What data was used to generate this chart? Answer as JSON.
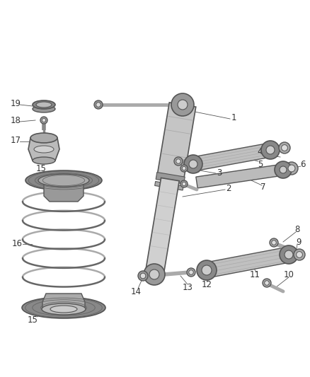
{
  "background_color": "#ffffff",
  "fig_width": 4.38,
  "fig_height": 5.33,
  "dpi": 100,
  "line_color": "#555555",
  "text_color": "#333333",
  "gray_dark": "#888888",
  "gray_mid": "#aaaaaa",
  "gray_light": "#cccccc",
  "gray_lighter": "#e0e0e0",
  "shock_color": "#b8b8b8",
  "arm_color": "#b0b0b0",
  "spring_color": "#999999"
}
